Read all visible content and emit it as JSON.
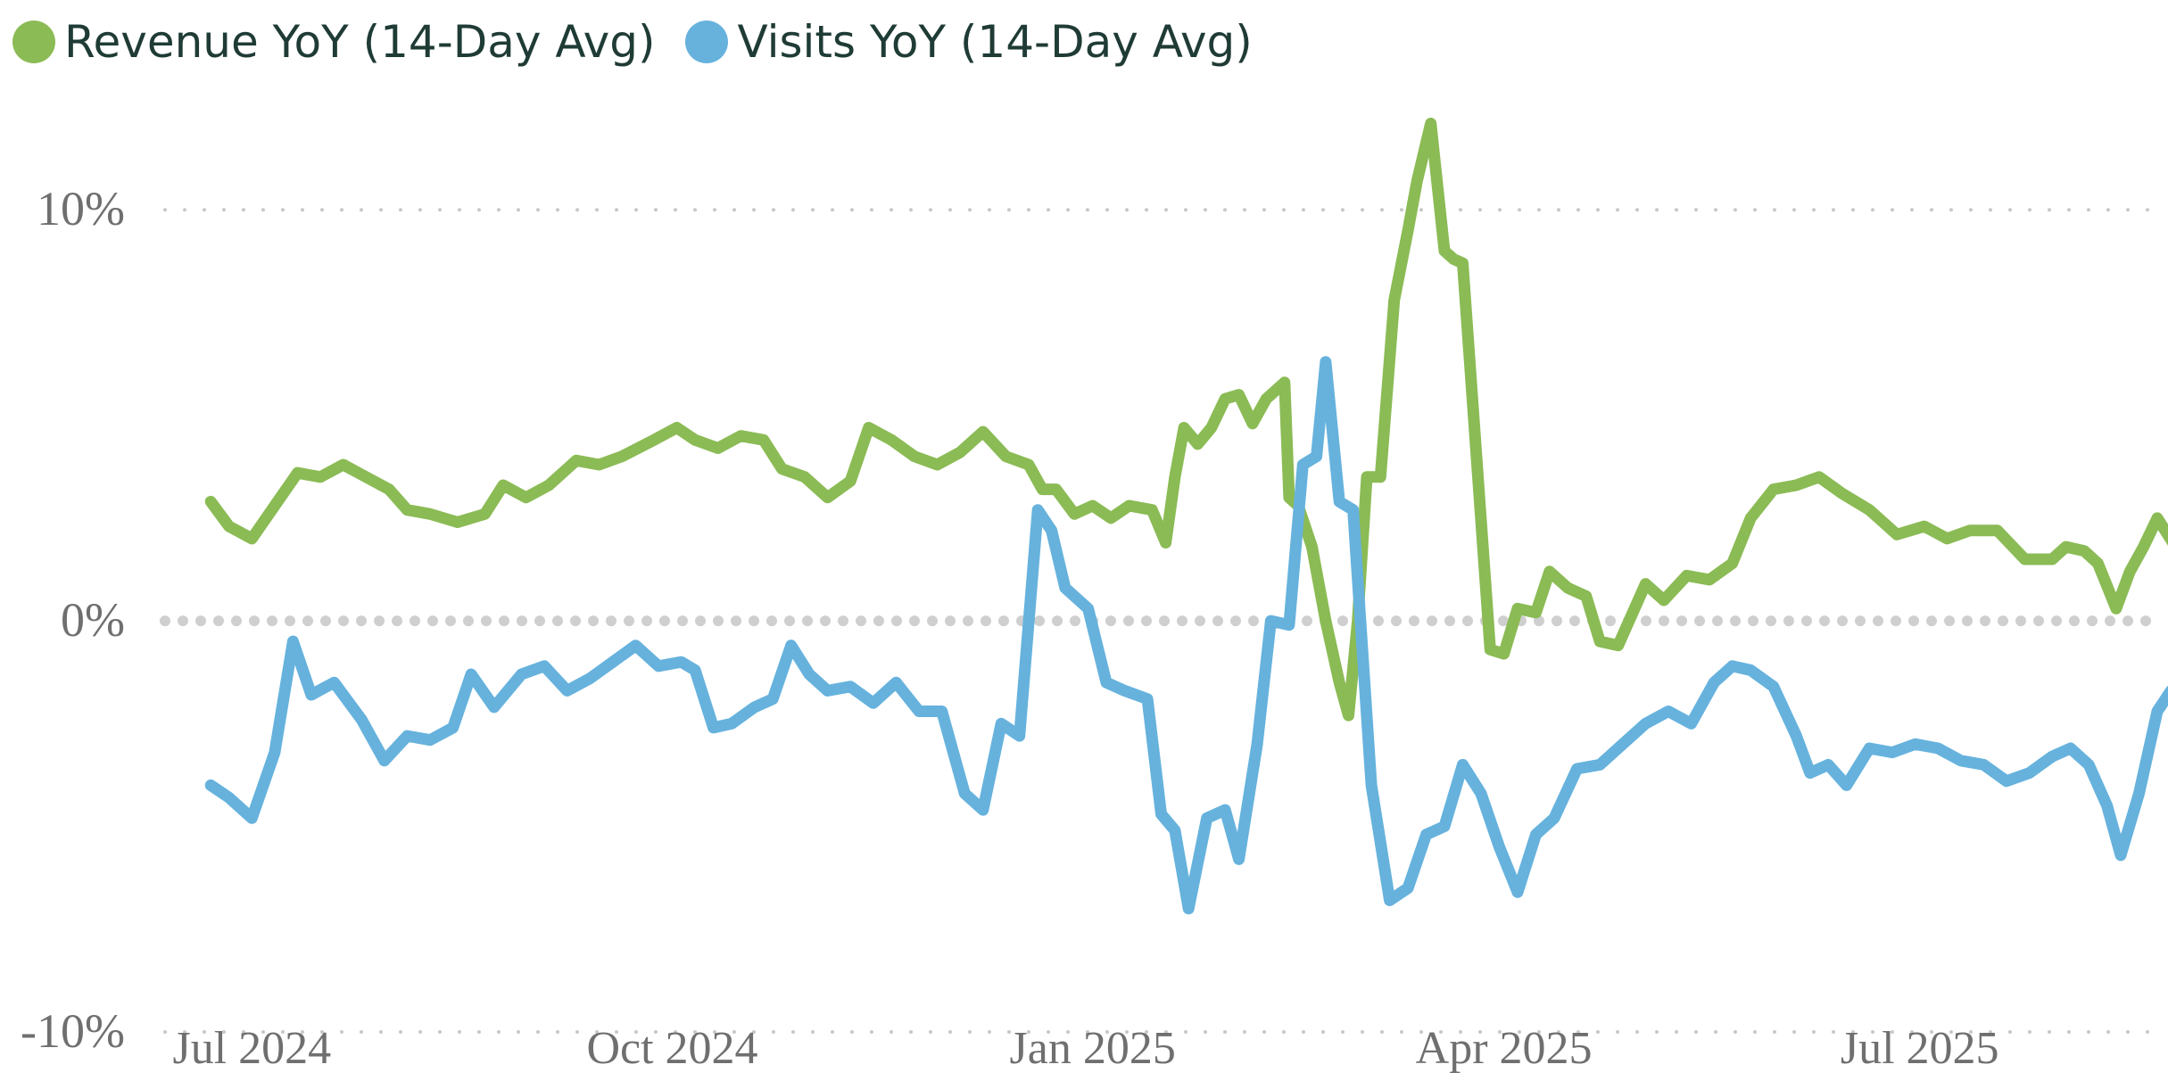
{
  "chart_data": {
    "type": "line",
    "title": "",
    "xlabel": "",
    "ylabel": "",
    "x_tick_labels": [
      "Jul 2024",
      "Oct 2024",
      "Jan 2025",
      "Apr 2025",
      "Jul 2025"
    ],
    "x_ticks": [
      "2024-07-01",
      "2024-10-01",
      "2025-01-01",
      "2025-04-01",
      "2025-07-01"
    ],
    "y_tick_labels": [
      "10%",
      "0%",
      "-10%"
    ],
    "y_ticks": [
      10,
      0,
      -10
    ],
    "ylim": [
      -10.5,
      12.5
    ],
    "xlim": [
      "2024-06-12",
      "2025-08-22"
    ],
    "grid": "horizontal-dotted",
    "legend_position": "top-left",
    "colors": {
      "revenue": "#8bbb55",
      "visits": "#66b2dd",
      "grid": "#c8c8c8",
      "tick_text": "#6f6f6f"
    },
    "series": [
      {
        "name": "Revenue YoY (14-Day Avg)",
        "color": "#8bbb55",
        "points": [
          [
            "2024-06-22",
            2.9
          ],
          [
            "2024-06-26",
            2.3
          ],
          [
            "2024-07-01",
            2.0
          ],
          [
            "2024-07-06",
            2.8
          ],
          [
            "2024-07-11",
            3.6
          ],
          [
            "2024-07-16",
            3.5
          ],
          [
            "2024-07-21",
            3.8
          ],
          [
            "2024-07-26",
            3.5
          ],
          [
            "2024-07-31",
            3.2
          ],
          [
            "2024-08-04",
            2.7
          ],
          [
            "2024-08-09",
            2.6
          ],
          [
            "2024-08-15",
            2.4
          ],
          [
            "2024-08-21",
            2.6
          ],
          [
            "2024-08-25",
            3.3
          ],
          [
            "2024-08-30",
            3.0
          ],
          [
            "2024-09-04",
            3.3
          ],
          [
            "2024-09-10",
            3.9
          ],
          [
            "2024-09-15",
            3.8
          ],
          [
            "2024-09-20",
            4.0
          ],
          [
            "2024-09-27",
            4.4
          ],
          [
            "2024-10-02",
            4.7
          ],
          [
            "2024-10-06",
            4.4
          ],
          [
            "2024-10-11",
            4.2
          ],
          [
            "2024-10-16",
            4.5
          ],
          [
            "2024-10-21",
            4.4
          ],
          [
            "2024-10-25",
            3.7
          ],
          [
            "2024-10-30",
            3.5
          ],
          [
            "2024-11-04",
            3.0
          ],
          [
            "2024-11-09",
            3.4
          ],
          [
            "2024-11-13",
            4.7
          ],
          [
            "2024-11-18",
            4.4
          ],
          [
            "2024-11-23",
            4.0
          ],
          [
            "2024-11-28",
            3.8
          ],
          [
            "2024-12-03",
            4.1
          ],
          [
            "2024-12-08",
            4.6
          ],
          [
            "2024-12-13",
            4.0
          ],
          [
            "2024-12-18",
            3.8
          ],
          [
            "2024-12-21",
            3.2
          ],
          [
            "2024-12-24",
            3.2
          ],
          [
            "2024-12-28",
            2.6
          ],
          [
            "2025-01-01",
            2.8
          ],
          [
            "2025-01-05",
            2.5
          ],
          [
            "2025-01-09",
            2.8
          ],
          [
            "2025-01-14",
            2.7
          ],
          [
            "2025-01-17",
            1.9
          ],
          [
            "2025-01-19",
            3.5
          ],
          [
            "2025-01-21",
            4.7
          ],
          [
            "2025-01-24",
            4.3
          ],
          [
            "2025-01-27",
            4.7
          ],
          [
            "2025-01-30",
            5.4
          ],
          [
            "2025-02-02",
            5.5
          ],
          [
            "2025-02-05",
            4.8
          ],
          [
            "2025-02-08",
            5.4
          ],
          [
            "2025-02-12",
            5.8
          ],
          [
            "2025-02-13",
            3.0
          ],
          [
            "2025-02-15",
            2.8
          ],
          [
            "2025-02-18",
            1.8
          ],
          [
            "2025-02-21",
            0.0
          ],
          [
            "2025-02-24",
            -1.5
          ],
          [
            "2025-02-26",
            -2.3
          ],
          [
            "2025-02-28",
            0.0
          ],
          [
            "2025-03-02",
            3.5
          ],
          [
            "2025-03-05",
            3.5
          ],
          [
            "2025-03-08",
            7.8
          ],
          [
            "2025-03-11",
            9.5
          ],
          [
            "2025-03-13",
            10.7
          ],
          [
            "2025-03-16",
            12.1
          ],
          [
            "2025-03-19",
            9.0
          ],
          [
            "2025-03-21",
            8.8
          ],
          [
            "2025-03-23",
            8.7
          ],
          [
            "2025-03-26",
            4.0
          ],
          [
            "2025-03-29",
            -0.7
          ],
          [
            "2025-04-01",
            -0.8
          ],
          [
            "2025-04-04",
            0.3
          ],
          [
            "2025-04-08",
            0.2
          ],
          [
            "2025-04-11",
            1.2
          ],
          [
            "2025-04-15",
            0.8
          ],
          [
            "2025-04-19",
            0.6
          ],
          [
            "2025-04-22",
            -0.5
          ],
          [
            "2025-04-26",
            -0.6
          ],
          [
            "2025-05-02",
            0.9
          ],
          [
            "2025-05-06",
            0.5
          ],
          [
            "2025-05-11",
            1.1
          ],
          [
            "2025-05-16",
            1.0
          ],
          [
            "2025-05-21",
            1.4
          ],
          [
            "2025-05-25",
            2.5
          ],
          [
            "2025-05-30",
            3.2
          ],
          [
            "2025-06-04",
            3.3
          ],
          [
            "2025-06-09",
            3.5
          ],
          [
            "2025-06-14",
            3.1
          ],
          [
            "2025-06-20",
            2.7
          ],
          [
            "2025-06-26",
            2.1
          ],
          [
            "2025-07-02",
            2.3
          ],
          [
            "2025-07-07",
            2.0
          ],
          [
            "2025-07-12",
            2.2
          ],
          [
            "2025-07-18",
            2.2
          ],
          [
            "2025-07-24",
            1.5
          ],
          [
            "2025-07-30",
            1.5
          ],
          [
            "2025-08-02",
            1.8
          ],
          [
            "2025-08-06",
            1.7
          ],
          [
            "2025-08-09",
            1.4
          ],
          [
            "2025-08-13",
            0.3
          ],
          [
            "2025-08-16",
            1.2
          ],
          [
            "2025-08-19",
            1.8
          ],
          [
            "2025-08-22",
            2.5
          ],
          [
            "2025-08-26",
            1.8
          ]
        ]
      },
      {
        "name": "Visits YoY (14-Day Avg)",
        "color": "#66b2dd",
        "points": [
          [
            "2024-06-22",
            -4.0
          ],
          [
            "2024-06-26",
            -4.3
          ],
          [
            "2024-07-01",
            -4.8
          ],
          [
            "2024-07-06",
            -3.2
          ],
          [
            "2024-07-10",
            -0.5
          ],
          [
            "2024-07-14",
            -1.8
          ],
          [
            "2024-07-19",
            -1.5
          ],
          [
            "2024-07-25",
            -2.4
          ],
          [
            "2024-07-30",
            -3.4
          ],
          [
            "2024-08-04",
            -2.8
          ],
          [
            "2024-08-09",
            -2.9
          ],
          [
            "2024-08-14",
            -2.6
          ],
          [
            "2024-08-18",
            -1.3
          ],
          [
            "2024-08-23",
            -2.1
          ],
          [
            "2024-08-29",
            -1.3
          ],
          [
            "2024-09-03",
            -1.1
          ],
          [
            "2024-09-08",
            -1.7
          ],
          [
            "2024-09-13",
            -1.4
          ],
          [
            "2024-09-18",
            -1.0
          ],
          [
            "2024-09-23",
            -0.6
          ],
          [
            "2024-09-28",
            -1.1
          ],
          [
            "2024-10-03",
            -1.0
          ],
          [
            "2024-10-06",
            -1.2
          ],
          [
            "2024-10-10",
            -2.6
          ],
          [
            "2024-10-14",
            -2.5
          ],
          [
            "2024-10-19",
            -2.1
          ],
          [
            "2024-10-23",
            -1.9
          ],
          [
            "2024-10-27",
            -0.6
          ],
          [
            "2024-10-31",
            -1.3
          ],
          [
            "2024-11-04",
            -1.7
          ],
          [
            "2024-11-09",
            -1.6
          ],
          [
            "2024-11-14",
            -2.0
          ],
          [
            "2024-11-19",
            -1.5
          ],
          [
            "2024-11-24",
            -2.2
          ],
          [
            "2024-11-29",
            -2.2
          ],
          [
            "2024-12-04",
            -4.2
          ],
          [
            "2024-12-08",
            -4.6
          ],
          [
            "2024-12-12",
            -2.5
          ],
          [
            "2024-12-16",
            -2.8
          ],
          [
            "2024-12-20",
            2.7
          ],
          [
            "2024-12-23",
            2.2
          ],
          [
            "2024-12-26",
            0.8
          ],
          [
            "2024-12-31",
            0.3
          ],
          [
            "2025-01-04",
            -1.5
          ],
          [
            "2025-01-08",
            -1.7
          ],
          [
            "2025-01-13",
            -1.9
          ],
          [
            "2025-01-16",
            -4.7
          ],
          [
            "2025-01-19",
            -5.1
          ],
          [
            "2025-01-22",
            -7.0
          ],
          [
            "2025-01-26",
            -4.8
          ],
          [
            "2025-01-30",
            -4.6
          ],
          [
            "2025-02-02",
            -5.8
          ],
          [
            "2025-02-06",
            -3.0
          ],
          [
            "2025-02-09",
            0.0
          ],
          [
            "2025-02-13",
            -0.1
          ],
          [
            "2025-02-16",
            3.8
          ],
          [
            "2025-02-19",
            4.0
          ],
          [
            "2025-02-21",
            6.3
          ],
          [
            "2025-02-24",
            2.9
          ],
          [
            "2025-02-27",
            2.7
          ],
          [
            "2025-03-03",
            -4.0
          ],
          [
            "2025-03-07",
            -6.8
          ],
          [
            "2025-03-11",
            -6.5
          ],
          [
            "2025-03-15",
            -5.2
          ],
          [
            "2025-03-19",
            -5.0
          ],
          [
            "2025-03-23",
            -3.5
          ],
          [
            "2025-03-27",
            -4.2
          ],
          [
            "2025-03-31",
            -5.5
          ],
          [
            "2025-04-04",
            -6.6
          ],
          [
            "2025-04-08",
            -5.2
          ],
          [
            "2025-04-12",
            -4.8
          ],
          [
            "2025-04-17",
            -3.6
          ],
          [
            "2025-04-22",
            -3.5
          ],
          [
            "2025-04-27",
            -3.0
          ],
          [
            "2025-05-02",
            -2.5
          ],
          [
            "2025-05-07",
            -2.2
          ],
          [
            "2025-05-12",
            -2.5
          ],
          [
            "2025-05-17",
            -1.5
          ],
          [
            "2025-05-21",
            -1.1
          ],
          [
            "2025-05-25",
            -1.2
          ],
          [
            "2025-05-30",
            -1.6
          ],
          [
            "2025-06-04",
            -2.8
          ],
          [
            "2025-06-07",
            -3.7
          ],
          [
            "2025-06-11",
            -3.5
          ],
          [
            "2025-06-15",
            -4.0
          ],
          [
            "2025-06-20",
            -3.1
          ],
          [
            "2025-06-25",
            -3.2
          ],
          [
            "2025-06-30",
            -3.0
          ],
          [
            "2025-07-05",
            -3.1
          ],
          [
            "2025-07-10",
            -3.4
          ],
          [
            "2025-07-15",
            -3.5
          ],
          [
            "2025-07-20",
            -3.9
          ],
          [
            "2025-07-25",
            -3.7
          ],
          [
            "2025-07-30",
            -3.3
          ],
          [
            "2025-08-03",
            -3.1
          ],
          [
            "2025-08-07",
            -3.5
          ],
          [
            "2025-08-11",
            -4.5
          ],
          [
            "2025-08-14",
            -5.7
          ],
          [
            "2025-08-18",
            -4.2
          ],
          [
            "2025-08-22",
            -2.2
          ],
          [
            "2025-08-25",
            -1.7
          ],
          [
            "2025-08-28",
            -2.1
          ]
        ]
      }
    ]
  }
}
